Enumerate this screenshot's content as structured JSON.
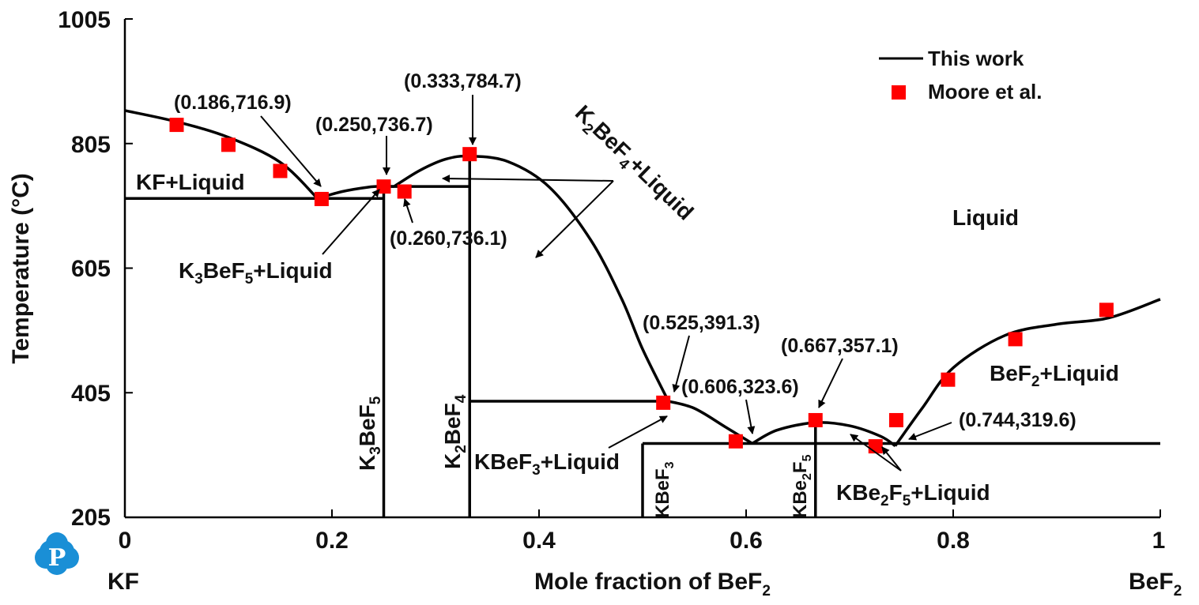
{
  "colors": {
    "curve": "#000000",
    "marker": "#ff0000",
    "logo": "#1a8fd6"
  },
  "logo_icon": "p-logo-icon",
  "chart_data": {
    "type": "line",
    "xlabel_text": "Mole fraction of BeF",
    "xlabel_sub": "2",
    "ylabel": "Temperature (°C)",
    "xlim": [
      0,
      1
    ],
    "ylim": [
      205,
      1005
    ],
    "x_ticks": [
      "0",
      "0.2",
      "0.4",
      "0.6",
      "0.8",
      "1"
    ],
    "y_ticks": [
      "1005",
      "805",
      "605",
      "405",
      "205"
    ],
    "x_end_labels": {
      "left": "KF",
      "right_text": "BeF",
      "right_sub": "2"
    },
    "legend": [
      {
        "name": "This work",
        "kind": "line"
      },
      {
        "name": "Moore et al.",
        "kind": "marker"
      }
    ],
    "series": [
      {
        "name": "This work",
        "liquidus": [
          [
            [
              0,
              858
            ],
            [
              0.05,
              840
            ],
            [
              0.1,
              815
            ],
            [
              0.15,
              775
            ],
            [
              0.186,
              716.9
            ]
          ],
          [
            [
              0.186,
              716.9
            ],
            [
              0.21,
              728
            ],
            [
              0.235,
              735
            ],
            [
              0.25,
              736.7
            ]
          ],
          [
            [
              0.25,
              736.7
            ],
            [
              0.26,
              736.1
            ]
          ],
          [
            [
              0.26,
              736.1
            ],
            [
              0.285,
              762
            ],
            [
              0.31,
              780
            ],
            [
              0.333,
              784.7
            ],
            [
              0.37,
              776
            ],
            [
              0.41,
              735
            ],
            [
              0.45,
              650
            ],
            [
              0.48,
              555
            ],
            [
              0.5,
              475
            ],
            [
              0.525,
              391.3
            ]
          ],
          [
            [
              0.525,
              391.3
            ],
            [
              0.55,
              380
            ],
            [
              0.58,
              350
            ],
            [
              0.606,
              323.6
            ]
          ],
          [
            [
              0.606,
              323.6
            ],
            [
              0.63,
              345
            ],
            [
              0.667,
              357.1
            ],
            [
              0.7,
              352
            ],
            [
              0.73,
              335
            ],
            [
              0.744,
              319.6
            ]
          ],
          [
            [
              0.744,
              319.6
            ],
            [
              0.77,
              380
            ],
            [
              0.8,
              445
            ],
            [
              0.85,
              497
            ],
            [
              0.9,
              515
            ],
            [
              0.95,
              525
            ],
            [
              1,
              555
            ]
          ]
        ],
        "horizontals": [
          {
            "x1": 0,
            "x2": 0.25,
            "y": 716.9
          },
          {
            "x1": 0.25,
            "x2": 0.333,
            "y": 736.1
          },
          {
            "x1": 0.333,
            "x2": 0.525,
            "y": 391.3
          },
          {
            "x1": 0.5,
            "x2": 1,
            "y": 323.6
          }
        ],
        "verticals": [
          {
            "x": 0.25,
            "y1": 205,
            "y2": 736.7
          },
          {
            "x": 0.333,
            "y1": 205,
            "y2": 784.7
          },
          {
            "x": 0.5,
            "y1": 205,
            "y2": 323.6
          },
          {
            "x": 0.667,
            "y1": 205,
            "y2": 357.1
          }
        ]
      },
      {
        "name": "Moore et al.",
        "points": [
          [
            0.05,
            835
          ],
          [
            0.1,
            803
          ],
          [
            0.15,
            761
          ],
          [
            0.19,
            716
          ],
          [
            0.25,
            736
          ],
          [
            0.27,
            728
          ],
          [
            0.333,
            788
          ],
          [
            0.52,
            389
          ],
          [
            0.59,
            327
          ],
          [
            0.667,
            361
          ],
          [
            0.725,
            319
          ],
          [
            0.745,
            361
          ],
          [
            0.795,
            426
          ],
          [
            0.86,
            491
          ],
          [
            0.948,
            538
          ]
        ]
      }
    ],
    "annotations": [
      {
        "text": "(0.186,716.9)"
      },
      {
        "text": "(0.250,736.7)"
      },
      {
        "text": "(0.333,784.7)"
      },
      {
        "text": "(0.260,736.1)"
      },
      {
        "text": "(0.525,391.3)"
      },
      {
        "text": "(0.606,323.6)"
      },
      {
        "text": "(0.667,357.1)"
      },
      {
        "text": "(0.744,319.6)"
      }
    ],
    "region_labels": {
      "kf_liquid": "KF+Liquid",
      "liquid": "Liquid",
      "k3bef5_liquid": {
        "a": "K",
        "a_sub": "3",
        "b": "BeF",
        "b_sub": "5",
        "c": "+Liquid"
      },
      "k2bef4_liquid": {
        "a": "K",
        "a_sub": "2",
        "b": "BeF",
        "b_sub": "4",
        "c": "+Liquid"
      },
      "kbef3_liquid": {
        "a": "KBeF",
        "a_sub": "3",
        "b": "+Liquid"
      },
      "kbe2f5_liquid": {
        "a": "KBe",
        "a_sub": "2",
        "b": "F",
        "b_sub": "5",
        "c": "+Liquid"
      },
      "bef2_liquid": {
        "a": "BeF",
        "a_sub": "2",
        "b": "+Liquid"
      }
    },
    "phase_labels": {
      "k3bef5": {
        "a": "K",
        "a_sub": "3",
        "b": "BeF",
        "b_sub": "5"
      },
      "k2bef4": {
        "a": "K",
        "a_sub": "2",
        "b": "BeF",
        "b_sub": "4"
      },
      "kbef3": {
        "a": "KBeF",
        "a_sub": "3"
      },
      "kbe2f5": {
        "a": "KBe",
        "a_sub": "2",
        "b": "F",
        "b_sub": "5"
      }
    }
  }
}
